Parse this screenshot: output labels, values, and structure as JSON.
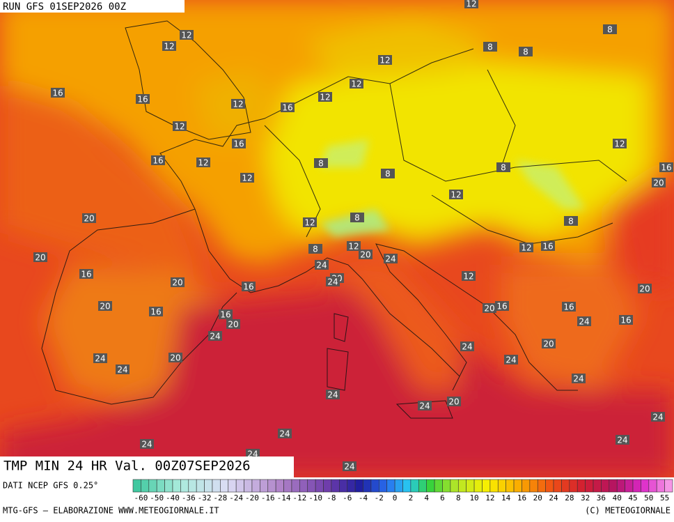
{
  "header": {
    "run": "RUN GFS 01SEP2026 00Z"
  },
  "title": "TMP MIN 24 HR Val. 00Z07SEP2026",
  "source": "DATI NCEP GFS 0.25°",
  "credit_left": "MTG-GFS – ELABORAZIONE WWW.METEOGIORNALE.IT",
  "credit_right": "(C) METEOGIORNALE",
  "colorbar": {
    "labels": [
      -60,
      -50,
      -40,
      -36,
      -32,
      -28,
      -24,
      -20,
      -16,
      -14,
      -12,
      -10,
      -8,
      -6,
      -4,
      -2,
      0,
      2,
      4,
      6,
      8,
      10,
      12,
      14,
      16,
      20,
      24,
      28,
      32,
      36,
      40,
      45,
      50,
      55
    ]
  },
  "map": {
    "labels": [
      12,
      12,
      8,
      12,
      8,
      8,
      12,
      16,
      12,
      16,
      12,
      12,
      16,
      12,
      16,
      12,
      16,
      12,
      8,
      8,
      8,
      16,
      12,
      20,
      12,
      20,
      8,
      12,
      8,
      20,
      8,
      12,
      12,
      16,
      20,
      24,
      16,
      20,
      24,
      20,
      16,
      12,
      20,
      20,
      16,
      20,
      16,
      16,
      16,
      20,
      16,
      24,
      24,
      24,
      20,
      24,
      24,
      20,
      24,
      24,
      24,
      20,
      24,
      24,
      24,
      24,
      24,
      24,
      24,
      24
    ]
  }
}
